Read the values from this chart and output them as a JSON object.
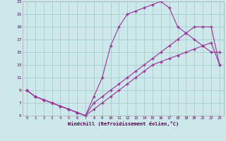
{
  "xlabel": "Windchill (Refroidissement éolien,°C)",
  "bg_color": "#cce8ea",
  "grid_color": "#aacccc",
  "line_color": "#993399",
  "xlim": [
    -0.5,
    23.5
  ],
  "ylim": [
    5,
    23
  ],
  "xticks": [
    0,
    1,
    2,
    3,
    4,
    5,
    6,
    7,
    8,
    9,
    10,
    11,
    12,
    13,
    14,
    15,
    16,
    17,
    18,
    19,
    20,
    21,
    22,
    23
  ],
  "yticks": [
    5,
    7,
    9,
    11,
    13,
    15,
    17,
    19,
    21,
    23
  ],
  "line1_x": [
    0,
    1,
    2,
    3,
    4,
    5,
    6,
    7,
    8,
    9,
    10,
    11,
    12,
    13,
    14,
    15,
    16,
    17,
    18,
    19,
    20,
    21,
    22,
    23
  ],
  "line1_y": [
    9,
    8,
    7.5,
    7,
    6.5,
    6,
    5.5,
    5,
    8,
    11,
    16,
    19,
    21,
    21.5,
    22,
    22.5,
    23,
    22,
    19,
    18,
    17,
    16,
    15,
    15
  ],
  "line2_x": [
    0,
    1,
    2,
    3,
    4,
    5,
    6,
    7,
    8,
    9,
    10,
    11,
    12,
    13,
    14,
    15,
    16,
    17,
    18,
    19,
    20,
    21,
    22,
    23
  ],
  "line2_y": [
    9,
    8,
    7.5,
    7,
    6.5,
    6,
    5.5,
    5,
    7,
    8,
    9,
    10,
    11,
    12,
    13,
    14,
    15,
    16,
    17,
    18,
    19,
    19,
    19,
    13
  ],
  "line3_x": [
    0,
    1,
    2,
    3,
    4,
    5,
    6,
    7,
    8,
    9,
    10,
    11,
    12,
    13,
    14,
    15,
    16,
    17,
    18,
    19,
    20,
    21,
    22,
    23
  ],
  "line3_y": [
    9,
    8,
    7.5,
    7,
    6.5,
    6,
    5.5,
    5,
    6,
    7,
    8,
    9,
    10,
    11,
    12,
    13,
    13.5,
    14,
    14.5,
    15,
    15.5,
    16,
    16.5,
    13
  ]
}
